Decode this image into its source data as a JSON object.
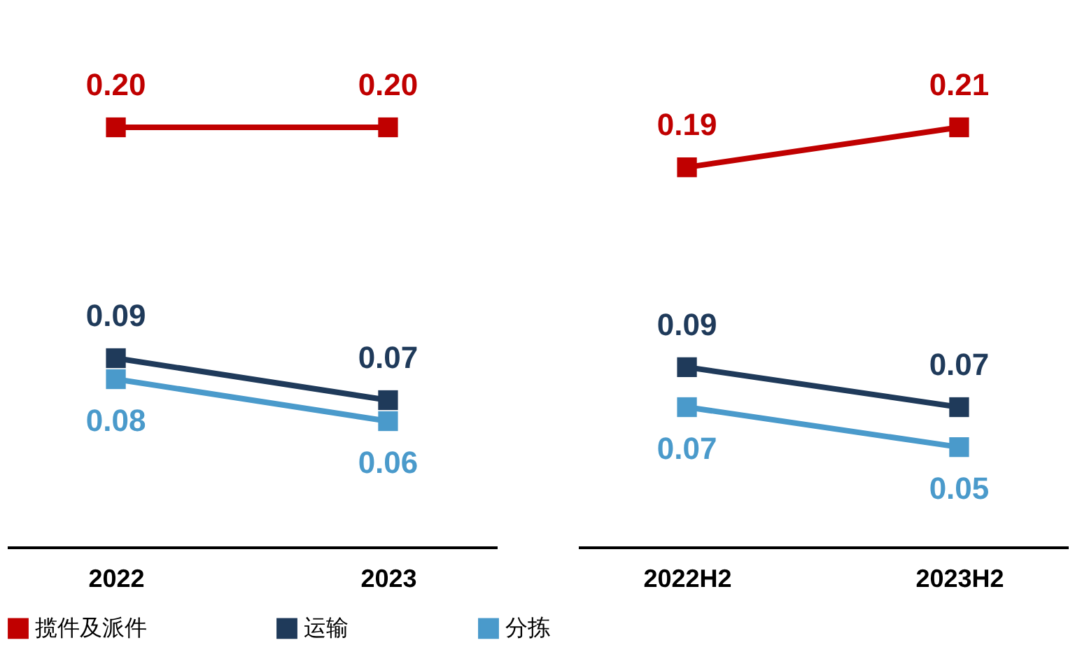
{
  "chart_data": [
    {
      "type": "line",
      "categories": [
        "2022",
        "2023"
      ],
      "tick_labels": "x",
      "marker": "square",
      "legend": "bottom",
      "grid": false,
      "series": [
        {
          "name": "揽件及派件",
          "color": "#c00000",
          "values": [
            0.2,
            0.2
          ],
          "value_labels": [
            "0.20",
            "0.20"
          ]
        },
        {
          "name": "运输",
          "color": "#1f3a5a",
          "values": [
            0.09,
            0.07
          ],
          "value_labels": [
            "0.09",
            "0.07"
          ]
        },
        {
          "name": "分拣",
          "color": "#4a9acb",
          "values": [
            0.08,
            0.06
          ],
          "value_labels": [
            "0.08",
            "0.06"
          ]
        }
      ]
    },
    {
      "type": "line",
      "categories": [
        "2022H2",
        "2023H2"
      ],
      "tick_labels": "x",
      "marker": "square",
      "grid": false,
      "series": [
        {
          "color": "#c00000",
          "values": [
            0.19,
            0.21
          ],
          "value_labels": [
            "0.19",
            "0.21"
          ]
        },
        {
          "color": "#1f3a5a",
          "values": [
            0.09,
            0.07
          ],
          "value_labels": [
            "0.09",
            "0.07"
          ]
        },
        {
          "color": "#4a9acb",
          "values": [
            0.07,
            0.05
          ],
          "value_labels": [
            "0.07",
            "0.05"
          ]
        }
      ]
    }
  ]
}
